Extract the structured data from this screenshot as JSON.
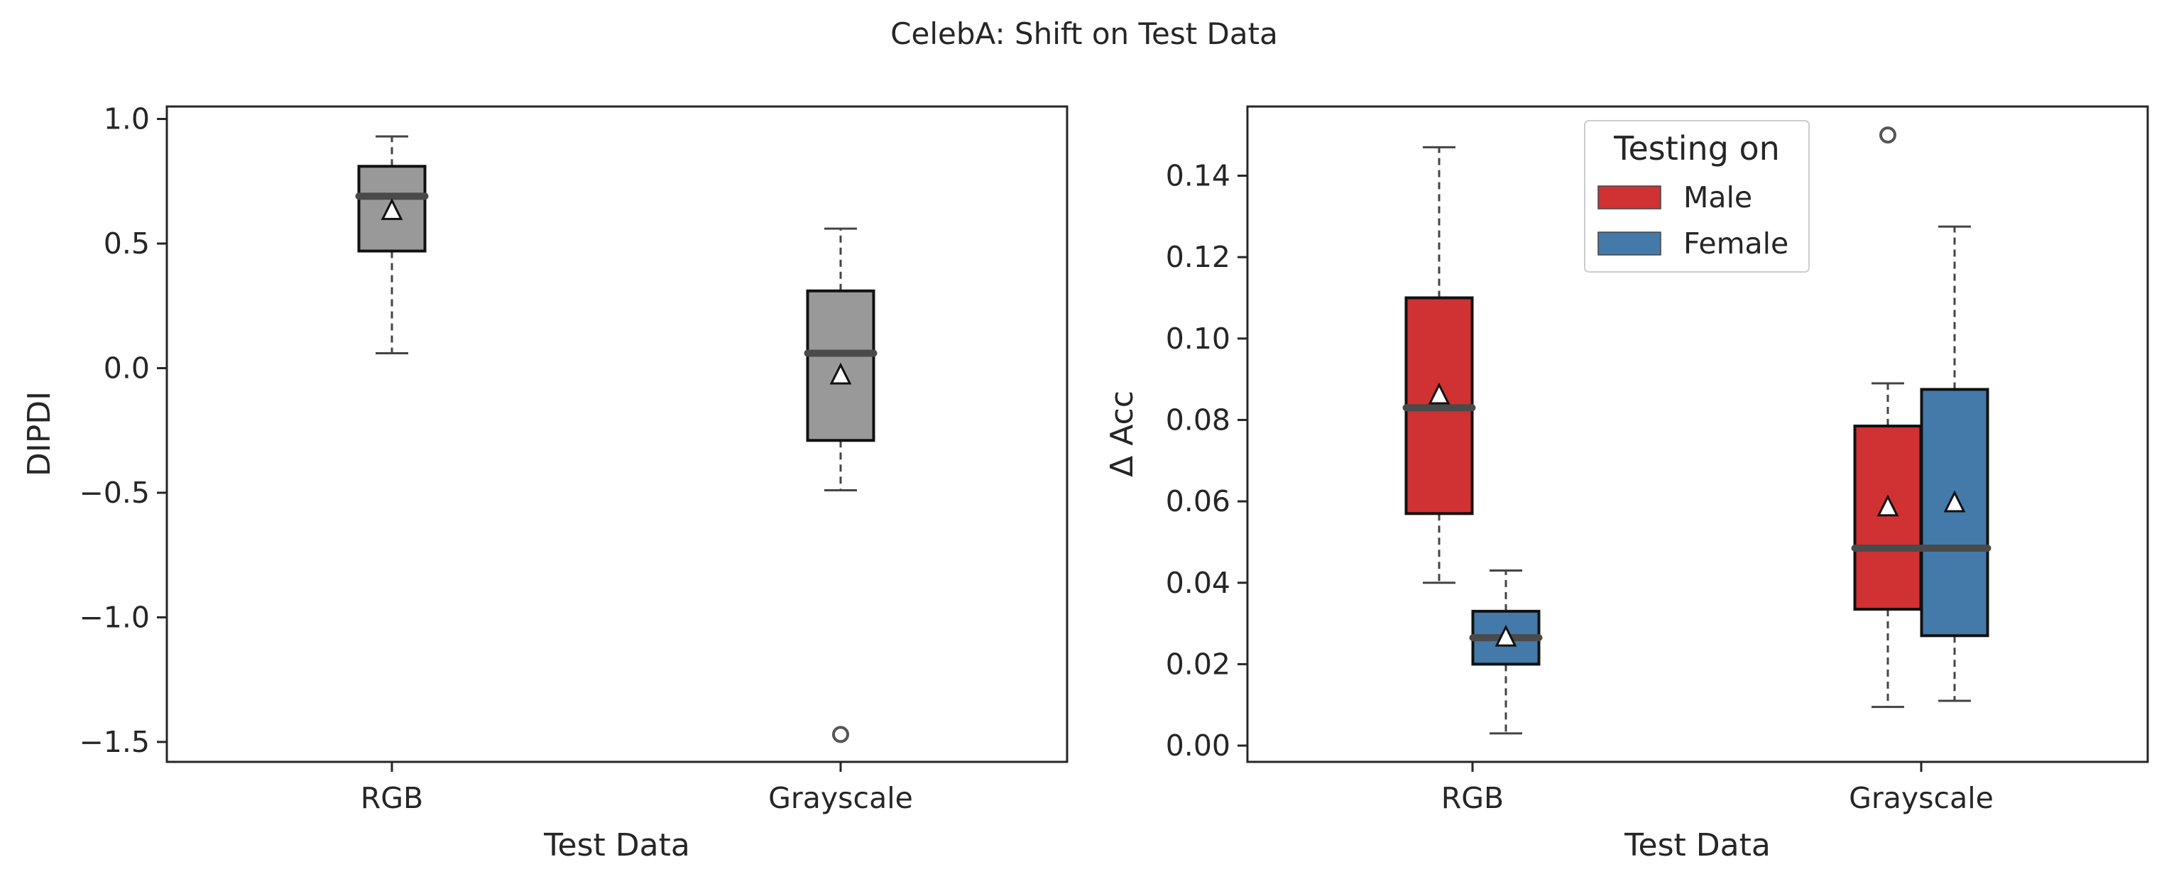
{
  "title": "CelebA: Shift on Test Data",
  "chart_data": [
    {
      "type": "box",
      "xlabel": "Test Data",
      "ylabel": "DIPDI",
      "ylim": [
        -1.58,
        1.05
      ],
      "yticks": [
        1.0,
        0.5,
        0.0,
        -0.5,
        -1.0,
        -1.5
      ],
      "ytick_labels": [
        "1.0",
        "0.5",
        "0.0",
        "−0.5",
        "−1.0",
        "−1.5"
      ],
      "categories": [
        "RGB",
        "Grayscale"
      ],
      "grid": false,
      "series": [
        {
          "color": "#999999",
          "boxes": [
            {
              "category": "RGB",
              "whisker_low": 0.06,
              "q1": 0.47,
              "median": 0.69,
              "q3": 0.81,
              "whisker_high": 0.93,
              "mean": 0.63,
              "outliers": []
            },
            {
              "category": "Grayscale",
              "whisker_low": -0.49,
              "q1": -0.29,
              "median": 0.06,
              "q3": 0.31,
              "whisker_high": 0.56,
              "mean": -0.03,
              "outliers": [
                -1.47
              ]
            }
          ]
        }
      ]
    },
    {
      "type": "box",
      "xlabel": "Test Data",
      "ylabel": "Δ Acc",
      "ylim": [
        -0.004,
        0.157
      ],
      "yticks": [
        0.0,
        0.02,
        0.04,
        0.06,
        0.08,
        0.1,
        0.12,
        0.14
      ],
      "ytick_labels": [
        "0.00",
        "0.02",
        "0.04",
        "0.06",
        "0.08",
        "0.10",
        "0.12",
        "0.14"
      ],
      "categories": [
        "RGB",
        "Grayscale"
      ],
      "grid": false,
      "legend": {
        "title": "Testing on",
        "placement": "top-center"
      },
      "series": [
        {
          "name": "Male",
          "color": "#d03133",
          "boxes": [
            {
              "category": "RGB",
              "whisker_low": 0.04,
              "q1": 0.057,
              "median": 0.083,
              "q3": 0.11,
              "whisker_high": 0.147,
              "mean": 0.086,
              "outliers": []
            },
            {
              "category": "Grayscale",
              "whisker_low": 0.0095,
              "q1": 0.0335,
              "median": 0.0485,
              "q3": 0.0785,
              "whisker_high": 0.089,
              "mean": 0.0585,
              "outliers": [
                0.15
              ]
            }
          ]
        },
        {
          "name": "Female",
          "color": "#437aaa",
          "boxes": [
            {
              "category": "RGB",
              "whisker_low": 0.003,
              "q1": 0.02,
              "median": 0.0265,
              "q3": 0.033,
              "whisker_high": 0.043,
              "mean": 0.0265,
              "outliers": []
            },
            {
              "category": "Grayscale",
              "whisker_low": 0.011,
              "q1": 0.027,
              "median": 0.0485,
              "q3": 0.0875,
              "whisker_high": 0.1275,
              "mean": 0.0595,
              "outliers": []
            }
          ]
        }
      ]
    }
  ]
}
